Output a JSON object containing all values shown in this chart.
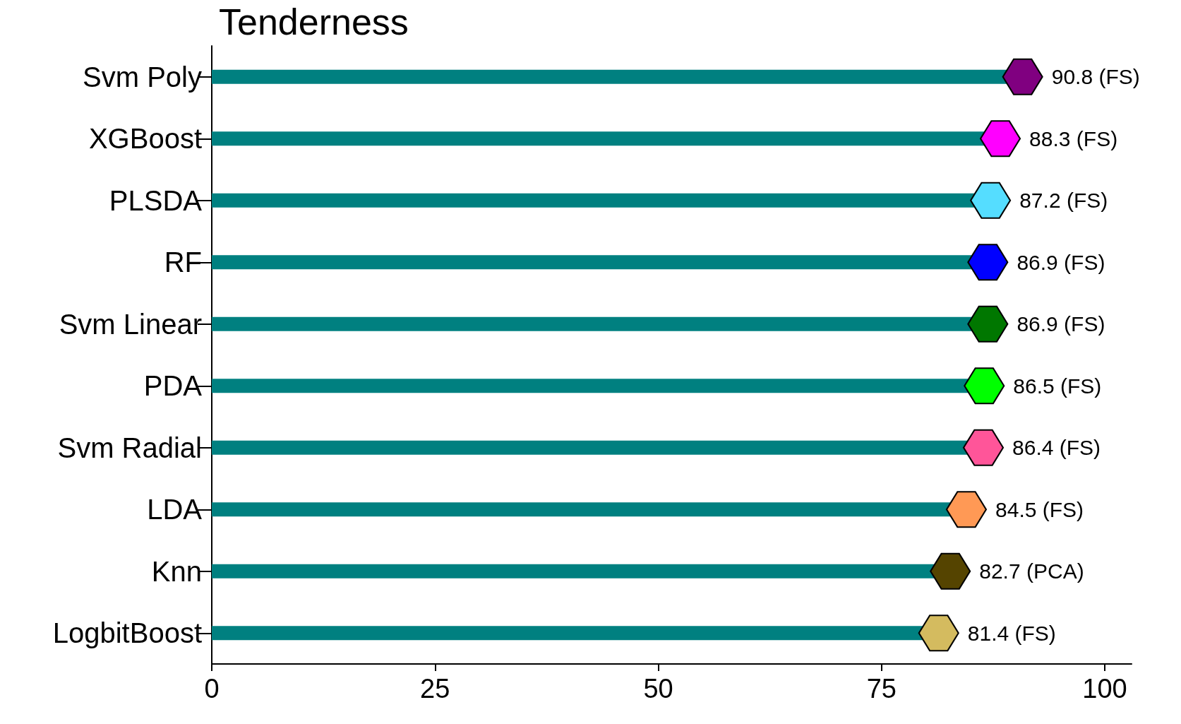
{
  "chart_data": {
    "type": "lollipop",
    "title": "Tenderness",
    "orientation": "horizontal",
    "categories": [
      "Svm Poly",
      "XGBoost",
      "PLSDA",
      "RF",
      "Svm Linear",
      "PDA",
      "Svm Radial",
      "LDA",
      "Knn",
      "LogbitBoost"
    ],
    "values": [
      90.8,
      88.3,
      87.2,
      86.9,
      86.9,
      86.5,
      86.4,
      84.5,
      82.7,
      81.4
    ],
    "value_labels": [
      "90.8 (FS)",
      "88.3 (FS)",
      "87.2 (FS)",
      "86.9 (FS)",
      "86.9 (FS)",
      "86.5 (FS)",
      "86.4 (FS)",
      "84.5 (FS)",
      "82.7 (PCA)",
      "81.4 (FS)"
    ],
    "color": "#008080",
    "colors": [
      "#800080",
      "#ff00ff",
      "#55ddff",
      "#0000ff",
      "#007700",
      "#00ff00",
      "#ff5599",
      "#ff9955",
      "#554400",
      "#d4bb5f"
    ],
    "xlim": [
      0,
      103
    ],
    "xticks": [
      0,
      25,
      50,
      75,
      100
    ],
    "grid": false
  }
}
